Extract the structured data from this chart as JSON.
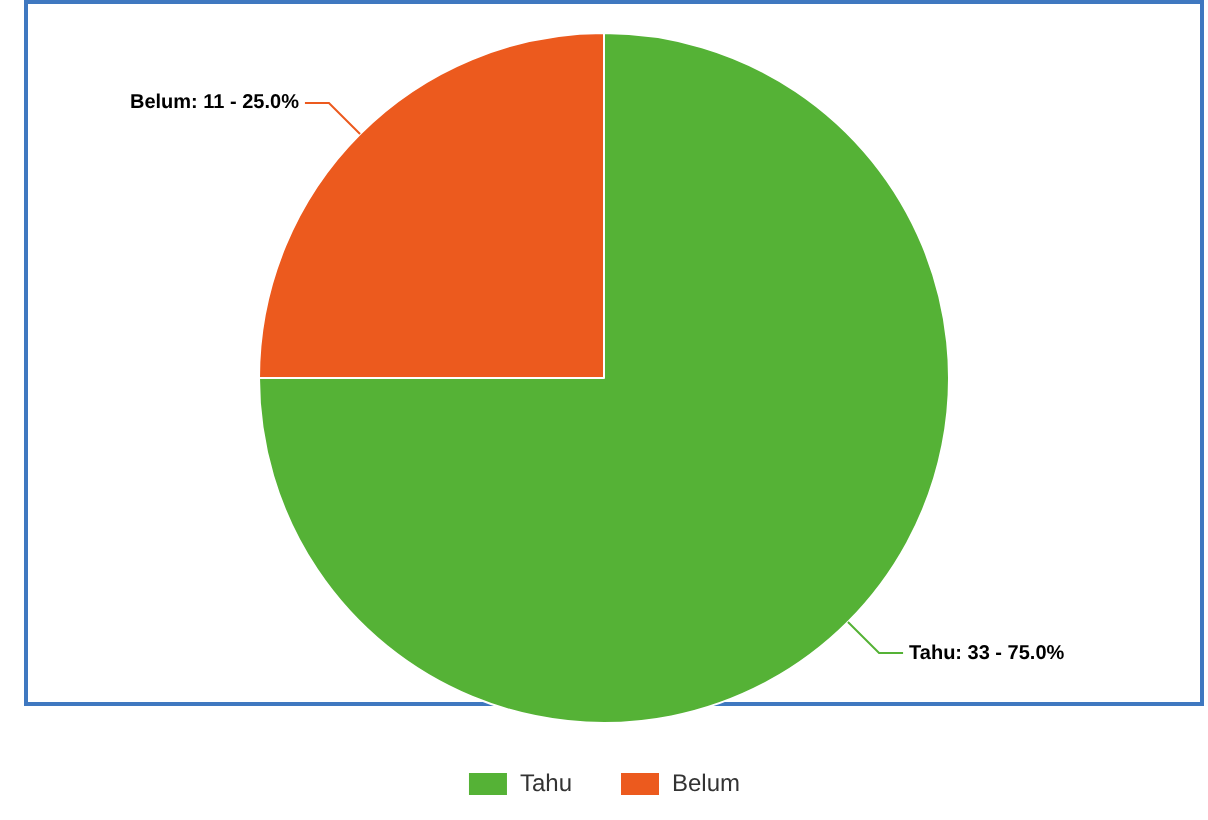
{
  "chart_data": {
    "type": "pie",
    "categories": [
      "Tahu",
      "Belum"
    ],
    "values": [
      33,
      11
    ],
    "colors": [
      "#55b236",
      "#ec5a1e"
    ],
    "value_labels": [
      "Tahu: 33 - 75.0%",
      "Belum: 11 - 25.0%"
    ],
    "legend": "bottom"
  }
}
